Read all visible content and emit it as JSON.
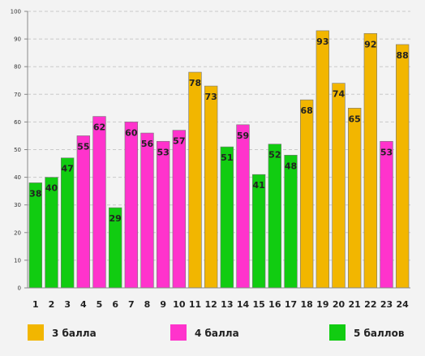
{
  "chart_data": {
    "type": "bar",
    "title": "",
    "xlabel": "",
    "ylabel": "",
    "ylim": [
      0,
      100
    ],
    "yticks": [
      0,
      10,
      20,
      30,
      40,
      50,
      60,
      70,
      80,
      90,
      100
    ],
    "grid": true,
    "categories": [
      "1",
      "2",
      "3",
      "4",
      "5",
      "6",
      "7",
      "8",
      "9",
      "10",
      "11",
      "12",
      "13",
      "14",
      "15",
      "16",
      "17",
      "18",
      "19",
      "20",
      "21",
      "22",
      "23",
      "24"
    ],
    "values": [
      38,
      40,
      47,
      55,
      62,
      29,
      60,
      56,
      53,
      57,
      78,
      73,
      51,
      59,
      41,
      52,
      48,
      68,
      93,
      74,
      65,
      92,
      53,
      88
    ],
    "groups": [
      "g5",
      "g5",
      "g5",
      "g4",
      "g4",
      "g5",
      "g4",
      "g4",
      "g4",
      "g4",
      "g3",
      "g3",
      "g5",
      "g4",
      "g5",
      "g5",
      "g5",
      "g3",
      "g3",
      "g3",
      "g3",
      "g3",
      "g4",
      "g3"
    ],
    "legend_placement": "bottom",
    "legend": [
      {
        "key": "g3",
        "label": "3 балла",
        "color": "#f2b600"
      },
      {
        "key": "g4",
        "label": "4 балла",
        "color": "#ff33cc"
      },
      {
        "key": "g5",
        "label": "5 баллов",
        "color": "#11cc11"
      }
    ]
  }
}
